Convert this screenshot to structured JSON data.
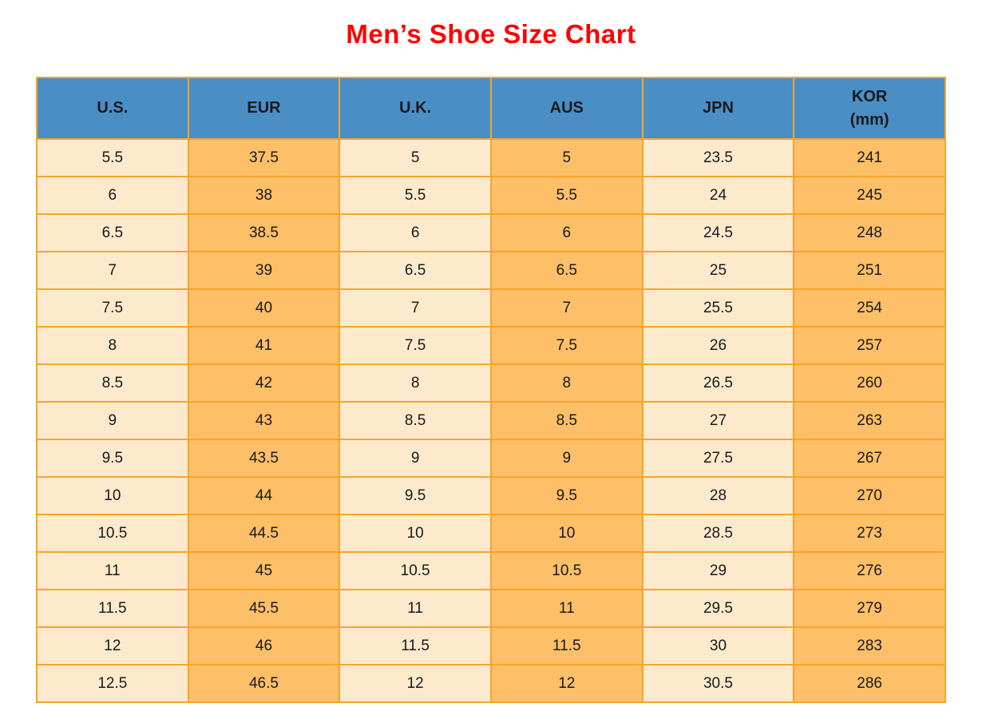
{
  "page": {
    "title": "Men’s Shoe Size Chart"
  },
  "colors": {
    "title_red": "#FF0000",
    "header_blue": "#4A8EC6",
    "col_orange": "#FDBF67",
    "col_cream": "#FDEACD",
    "border_orange": "#F7A428",
    "text_black": "#1A1A1A"
  },
  "table": {
    "headers": [
      {
        "label": "U.S.",
        "sub": ""
      },
      {
        "label": "EUR",
        "sub": ""
      },
      {
        "label": "U.K.",
        "sub": ""
      },
      {
        "label": "AUS",
        "sub": ""
      },
      {
        "label": "JPN",
        "sub": ""
      },
      {
        "label": "KOR",
        "sub": "(mm)"
      }
    ],
    "column_styles": [
      "cream",
      "orange",
      "cream",
      "orange",
      "cream",
      "orange"
    ],
    "rows": [
      [
        "5.5",
        "37.5",
        "5",
        "5",
        "23.5",
        "241"
      ],
      [
        "6",
        "38",
        "5.5",
        "5.5",
        "24",
        "245"
      ],
      [
        "6.5",
        "38.5",
        "6",
        "6",
        "24.5",
        "248"
      ],
      [
        "7",
        "39",
        "6.5",
        "6.5",
        "25",
        "251"
      ],
      [
        "7.5",
        "40",
        "7",
        "7",
        "25.5",
        "254"
      ],
      [
        "8",
        "41",
        "7.5",
        "7.5",
        "26",
        "257"
      ],
      [
        "8.5",
        "42",
        "8",
        "8",
        "26.5",
        "260"
      ],
      [
        "9",
        "43",
        "8.5",
        "8.5",
        "27",
        "263"
      ],
      [
        "9.5",
        "43.5",
        "9",
        "9",
        "27.5",
        "267"
      ],
      [
        "10",
        "44",
        "9.5",
        "9.5",
        "28",
        "270"
      ],
      [
        "10.5",
        "44.5",
        "10",
        "10",
        "28.5",
        "273"
      ],
      [
        "11",
        "45",
        "10.5",
        "10.5",
        "29",
        "276"
      ],
      [
        "11.5",
        "45.5",
        "11",
        "11",
        "29.5",
        "279"
      ],
      [
        "12",
        "46",
        "11.5",
        "11.5",
        "30",
        "283"
      ],
      [
        "12.5",
        "46.5",
        "12",
        "12",
        "30.5",
        "286"
      ]
    ]
  },
  "chart_data": {
    "type": "table",
    "title": "Men’s Shoe Size Chart",
    "columns": [
      "U.S.",
      "EUR",
      "U.K.",
      "AUS",
      "JPN",
      "KOR (mm)"
    ],
    "rows": [
      [
        5.5,
        37.5,
        5,
        5,
        23.5,
        241
      ],
      [
        6,
        38,
        5.5,
        5.5,
        24,
        245
      ],
      [
        6.5,
        38.5,
        6,
        6,
        24.5,
        248
      ],
      [
        7,
        39,
        6.5,
        6.5,
        25,
        251
      ],
      [
        7.5,
        40,
        7,
        7,
        25.5,
        254
      ],
      [
        8,
        41,
        7.5,
        7.5,
        26,
        257
      ],
      [
        8.5,
        42,
        8,
        8,
        26.5,
        260
      ],
      [
        9,
        43,
        8.5,
        8.5,
        27,
        263
      ],
      [
        9.5,
        43.5,
        9,
        9,
        27.5,
        267
      ],
      [
        10,
        44,
        9.5,
        9.5,
        28,
        270
      ],
      [
        10.5,
        44.5,
        10,
        10,
        28.5,
        273
      ],
      [
        11,
        45,
        10.5,
        10.5,
        29,
        276
      ],
      [
        11.5,
        45.5,
        11,
        11,
        29.5,
        279
      ],
      [
        12,
        46,
        11.5,
        11.5,
        30,
        283
      ],
      [
        12.5,
        46.5,
        12,
        12,
        30.5,
        286
      ]
    ],
    "layout": {
      "header_background": "#4A8EC6",
      "column_fill_alternation": [
        "#FDEACD",
        "#FDBF67"
      ],
      "grid_color": "#F7A428",
      "title_color": "#FF0000"
    }
  }
}
